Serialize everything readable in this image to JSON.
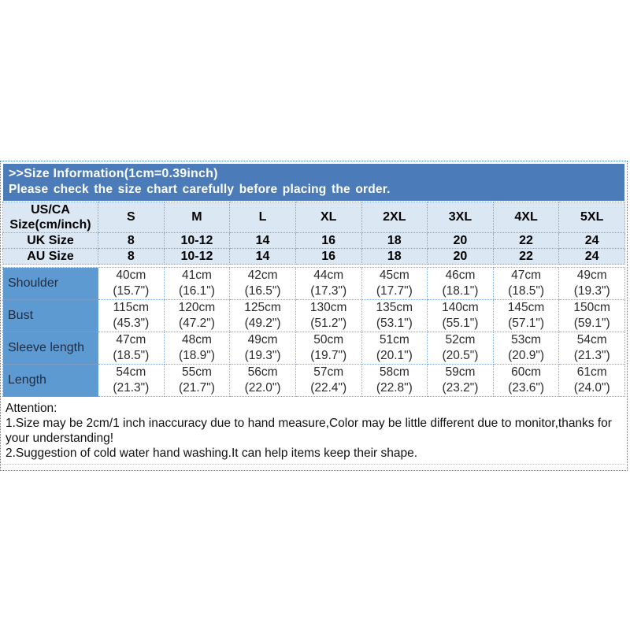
{
  "header": {
    "title": ">>Size Information(1cm=0.39inch)",
    "subtitle": "Please check the size chart carefully before placing the order."
  },
  "table": {
    "corner_label": "US/CA\nSize(cm/inch)",
    "sizes": [
      "S",
      "M",
      "L",
      "XL",
      "2XL",
      "3XL",
      "4XL",
      "5XL"
    ],
    "uk_label": "UK Size",
    "uk_values": [
      "8",
      "10-12",
      "14",
      "16",
      "18",
      "20",
      "22",
      "24"
    ],
    "au_label": "AU Size",
    "au_values": [
      "8",
      "10-12",
      "14",
      "16",
      "18",
      "20",
      "22",
      "24"
    ],
    "measurements": [
      {
        "label": "Shoulder",
        "values": [
          "40cm\n(15.7\")",
          "41cm\n(16.1\")",
          "42cm\n(16.5\")",
          "44cm\n(17.3\")",
          "45cm\n(17.7\")",
          "46cm\n(18.1\")",
          "47cm\n(18.5\")",
          "49cm\n(19.3\")"
        ]
      },
      {
        "label": "Bust",
        "values": [
          "115cm\n(45.3\")",
          "120cm\n(47.2\")",
          "125cm\n(49.2\")",
          "130cm\n(51.2\")",
          "135cm\n(53.1\")",
          "140cm\n(55.1\")",
          "145cm\n(57.1\")",
          "150cm\n(59.1\")"
        ]
      },
      {
        "label": "Sleeve length",
        "values": [
          "47cm\n(18.5\")",
          "48cm\n(18.9\")",
          "49cm\n(19.3\")",
          "50cm\n(19.7\")",
          "51cm\n(20.1\")",
          "52cm\n(20.5\")",
          "53cm\n(20.9\")",
          "54cm\n(21.3\")"
        ]
      },
      {
        "label": "Length",
        "values": [
          "54cm\n(21.3\")",
          "55cm\n(21.7\")",
          "56cm\n(22.0\")",
          "57cm\n(22.4\")",
          "58cm\n(22.8\")",
          "59cm\n(23.2\")",
          "60cm\n(23.6\")",
          "61cm\n(24.0\")"
        ]
      }
    ]
  },
  "attention": {
    "heading": "Attention:",
    "note1": "1.Size may be 2cm/1 inch inaccuracy due to hand measure,Color may be little different due to monitor,thanks for your understanding!",
    "note2": "2.Suggestion of cold water hand washing.It can help items keep their shape."
  },
  "colors": {
    "header_bar": "#4b7cb9",
    "size_rows_bg": "#dbe7f3",
    "label_column_bg": "#5d9ad2",
    "grid_dotted": "#84a6cc",
    "outer_border": "#4a79b4"
  }
}
